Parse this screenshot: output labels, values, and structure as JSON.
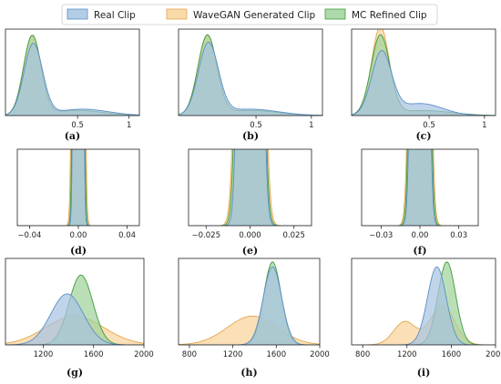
{
  "legend": [
    {
      "name": "Real Clip",
      "fill": "#a7c4e2",
      "stroke": "#5b8fc7"
    },
    {
      "name": "WaveGAN Generated Clip",
      "fill": "#f9d39a",
      "stroke": "#e2a850"
    },
    {
      "name": "MC Refined Clip",
      "fill": "#9fd39b",
      "stroke": "#3f9a3f"
    }
  ],
  "chart_data": [
    {
      "type": "area",
      "caption": "(a)",
      "xlim": [
        -0.2,
        1.1
      ],
      "ylim": [
        0,
        4.3
      ],
      "xticks": [
        {
          "v": 0.5,
          "label": "0.5"
        },
        {
          "v": 1,
          "label": "1"
        }
      ],
      "series": [
        {
          "name": "Real Clip",
          "components": [
            {
              "w": 0.8,
              "mu": 0.07,
              "sd": 0.09
            },
            {
              "w": 0.2,
              "mu": 0.55,
              "sd": 0.25
            }
          ]
        },
        {
          "name": "WaveGAN Generated Clip",
          "components": [
            {
              "w": 0.84,
              "mu": 0.06,
              "sd": 0.085
            },
            {
              "w": 0.16,
              "mu": 0.5,
              "sd": 0.25
            }
          ]
        },
        {
          "name": "MC Refined Clip",
          "components": [
            {
              "w": 0.84,
              "mu": 0.06,
              "sd": 0.085
            },
            {
              "w": 0.16,
              "mu": 0.5,
              "sd": 0.25
            }
          ]
        }
      ]
    },
    {
      "type": "area",
      "caption": "(b)",
      "xlim": [
        -0.2,
        1.1
      ],
      "ylim": [
        0,
        4.3
      ],
      "xticks": [
        {
          "v": 0.5,
          "label": "0.5"
        },
        {
          "v": 1,
          "label": "1"
        }
      ],
      "series": [
        {
          "name": "Real Clip",
          "components": [
            {
              "w": 0.8,
              "mu": 0.07,
              "sd": 0.09
            },
            {
              "w": 0.2,
              "mu": 0.45,
              "sd": 0.25
            }
          ]
        },
        {
          "name": "WaveGAN Generated Clip",
          "components": [
            {
              "w": 0.84,
              "mu": 0.06,
              "sd": 0.085
            },
            {
              "w": 0.16,
              "mu": 0.45,
              "sd": 0.25
            }
          ]
        },
        {
          "name": "MC Refined Clip",
          "components": [
            {
              "w": 0.84,
              "mu": 0.06,
              "sd": 0.085
            },
            {
              "w": 0.16,
              "mu": 0.45,
              "sd": 0.25
            }
          ]
        }
      ]
    },
    {
      "type": "area",
      "caption": "(c)",
      "xlim": [
        -0.2,
        1.1
      ],
      "ylim": [
        0,
        4.3
      ],
      "xticks": [
        {
          "v": 0.5,
          "label": "0.5"
        },
        {
          "v": 1,
          "label": "1"
        }
      ],
      "series": [
        {
          "name": "Real Clip",
          "components": [
            {
              "w": 0.7,
              "mu": 0.07,
              "sd": 0.09
            },
            {
              "w": 0.3,
              "mu": 0.42,
              "sd": 0.2
            }
          ]
        },
        {
          "name": "WaveGAN Generated Clip",
          "components": [
            {
              "w": 0.88,
              "mu": 0.06,
              "sd": 0.08
            },
            {
              "w": 0.12,
              "mu": 0.45,
              "sd": 0.22
            }
          ]
        },
        {
          "name": "MC Refined Clip",
          "components": [
            {
              "w": 0.84,
              "mu": 0.06,
              "sd": 0.085
            },
            {
              "w": 0.16,
              "mu": 0.45,
              "sd": 0.25
            }
          ]
        }
      ]
    },
    {
      "type": "area",
      "caption": "(d)",
      "xlim": [
        -0.05,
        0.05
      ],
      "ylim": [
        0,
        2.5
      ],
      "xticks": [
        {
          "v": -0.04,
          "label": "−0.04"
        },
        {
          "v": 0,
          "label": "0.00"
        },
        {
          "v": 0.04,
          "label": "0.04"
        }
      ],
      "series": [
        {
          "name": "Real Clip",
          "components": [
            {
              "w": 1,
              "mu": 0,
              "sd": 0.0017
            }
          ]
        },
        {
          "name": "WaveGAN Generated Clip",
          "components": [
            {
              "w": 1,
              "mu": 0,
              "sd": 0.0022
            }
          ]
        },
        {
          "name": "MC Refined Clip",
          "components": [
            {
              "w": 1,
              "mu": 0,
              "sd": 0.0019
            }
          ]
        }
      ]
    },
    {
      "type": "area",
      "caption": "(e)",
      "xlim": [
        -0.035,
        0.035
      ],
      "ylim": [
        0,
        2.5
      ],
      "xticks": [
        {
          "v": -0.025,
          "label": "−0.025"
        },
        {
          "v": 0,
          "label": "0.000"
        },
        {
          "v": 0.025,
          "label": "0.025"
        }
      ],
      "series": [
        {
          "name": "Real Clip",
          "components": [
            {
              "w": 1,
              "mu": 0.0002,
              "sd": 0.0032
            }
          ]
        },
        {
          "name": "WaveGAN Generated Clip",
          "components": [
            {
              "w": 1,
              "mu": 0,
              "sd": 0.0038
            }
          ]
        },
        {
          "name": "MC Refined Clip",
          "components": [
            {
              "w": 1,
              "mu": 0,
              "sd": 0.0035
            }
          ]
        }
      ]
    },
    {
      "type": "area",
      "caption": "(f)",
      "xlim": [
        -0.045,
        0.045
      ],
      "ylim": [
        0,
        2.5
      ],
      "xticks": [
        {
          "v": -0.03,
          "label": "−0.03"
        },
        {
          "v": 0,
          "label": "0.00"
        },
        {
          "v": 0.03,
          "label": "0.03"
        }
      ],
      "series": [
        {
          "name": "Real Clip",
          "components": [
            {
              "w": 1,
              "mu": 0,
              "sd": 0.0032
            }
          ]
        },
        {
          "name": "WaveGAN Generated Clip",
          "components": [
            {
              "w": 1,
              "mu": 0,
              "sd": 0.0038
            }
          ]
        },
        {
          "name": "MC Refined Clip",
          "components": [
            {
              "w": 1,
              "mu": 0,
              "sd": 0.0035
            }
          ]
        }
      ]
    },
    {
      "type": "area",
      "caption": "(g)",
      "xlim": [
        900,
        2000
      ],
      "ylim": [
        0,
        0.0052
      ],
      "xticks": [
        {
          "v": 1200,
          "label": "1200"
        },
        {
          "v": 1600,
          "label": "1600"
        },
        {
          "v": 2000,
          "label": "2000"
        }
      ],
      "series": [
        {
          "name": "Real Clip",
          "components": [
            {
              "w": 1,
              "mu": 1390,
              "sd": 130
            }
          ]
        },
        {
          "name": "WaveGAN Generated Clip",
          "components": [
            {
              "w": 1,
              "mu": 1450,
              "sd": 230
            }
          ]
        },
        {
          "name": "MC Refined Clip",
          "components": [
            {
              "w": 1,
              "mu": 1500,
              "sd": 95
            }
          ]
        }
      ]
    },
    {
      "type": "area",
      "caption": "(h)",
      "xlim": [
        700,
        2000
      ],
      "ylim": [
        0,
        0.0052
      ],
      "xticks": [
        {
          "v": 800,
          "label": "800"
        },
        {
          "v": 1200,
          "label": "1200"
        },
        {
          "v": 1600,
          "label": "1600"
        },
        {
          "v": 2000,
          "label": "2000"
        }
      ],
      "series": [
        {
          "name": "Real Clip",
          "components": [
            {
              "w": 1,
              "mu": 1565,
              "sd": 85
            }
          ]
        },
        {
          "name": "WaveGAN Generated Clip",
          "components": [
            {
              "w": 1,
              "mu": 1380,
              "sd": 230
            }
          ]
        },
        {
          "name": "MC Refined Clip",
          "components": [
            {
              "w": 1,
              "mu": 1565,
              "sd": 80
            }
          ]
        }
      ]
    },
    {
      "type": "area",
      "caption": "(i)",
      "xlim": [
        700,
        2000
      ],
      "ylim": [
        0,
        0.0052
      ],
      "xticks": [
        {
          "v": 800,
          "label": "800"
        },
        {
          "v": 1200,
          "label": "1200"
        },
        {
          "v": 1600,
          "label": "1600"
        },
        {
          "v": 2000,
          "label": "2000"
        }
      ],
      "series": [
        {
          "name": "Real Clip",
          "components": [
            {
              "w": 1,
              "mu": 1470,
              "sd": 85
            }
          ]
        },
        {
          "name": "WaveGAN Generated Clip",
          "components": [
            {
              "w": 0.35,
              "mu": 1180,
              "sd": 100
            },
            {
              "w": 0.65,
              "mu": 1520,
              "sd": 110
            }
          ]
        },
        {
          "name": "MC Refined Clip",
          "components": [
            {
              "w": 1,
              "mu": 1560,
              "sd": 80
            }
          ]
        }
      ]
    }
  ]
}
